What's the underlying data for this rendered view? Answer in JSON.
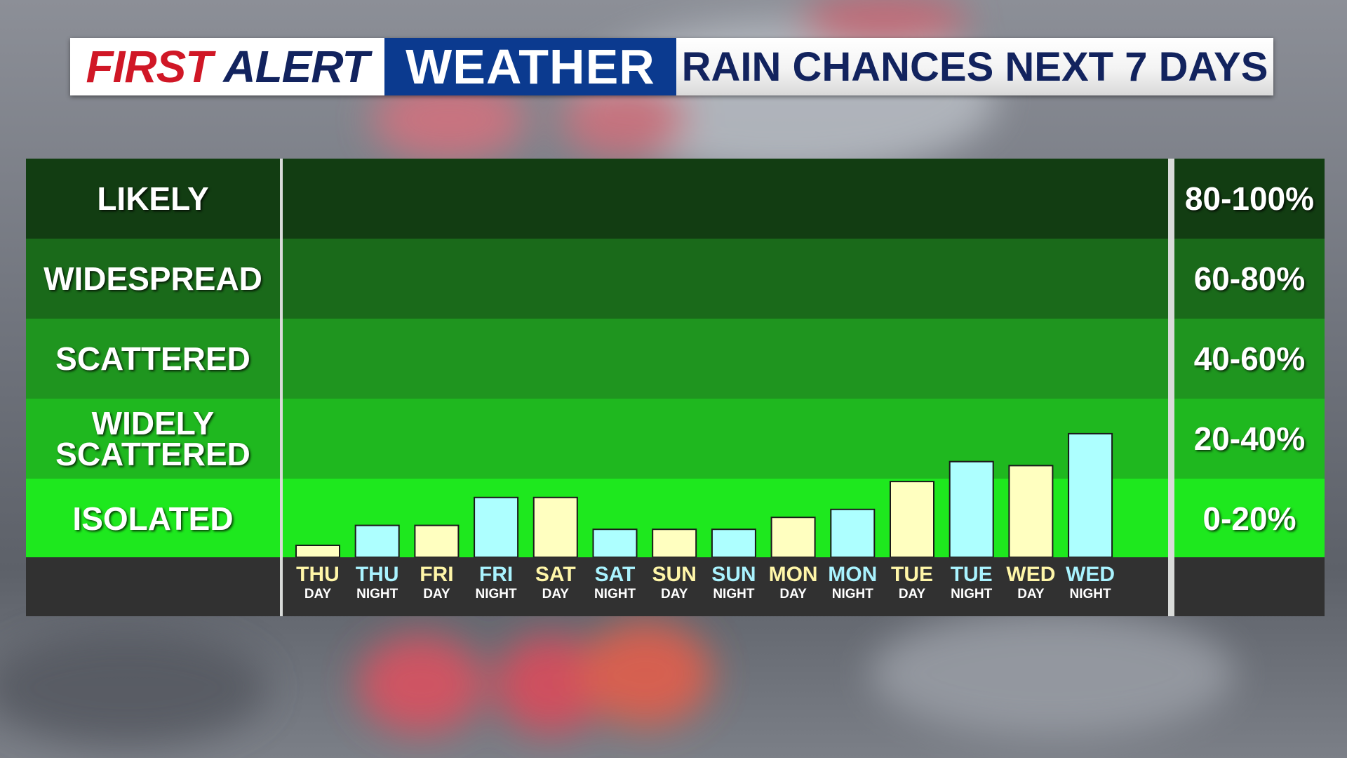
{
  "header": {
    "brand_first": "FIRST",
    "brand_alert": "ALERT",
    "brand_weather": "WEATHER",
    "title": "RAIN CHANCES NEXT 7 DAYS"
  },
  "colors": {
    "day_bar": "#ffffc0",
    "night_bar": "#adffff",
    "day_label": "#fff6a8",
    "night_label": "#a9f3ff",
    "band_likely": "#123d12",
    "band_widespread": "#1a6a1a",
    "band_scattered": "#1f951f",
    "band_widely_scattered": "#1fb81f",
    "band_isolated": "#1ee81e",
    "brand_red": "#d01726",
    "brand_navy": "#12235e",
    "brand_blue": "#0b3a8f"
  },
  "chart_data": {
    "type": "bar",
    "ylim": [
      0,
      100
    ],
    "categories": [
      {
        "day": "THU",
        "period": "DAY"
      },
      {
        "day": "THU",
        "period": "NIGHT"
      },
      {
        "day": "FRI",
        "period": "DAY"
      },
      {
        "day": "FRI",
        "period": "NIGHT"
      },
      {
        "day": "SAT",
        "period": "DAY"
      },
      {
        "day": "SAT",
        "period": "NIGHT"
      },
      {
        "day": "SUN",
        "period": "DAY"
      },
      {
        "day": "SUN",
        "period": "NIGHT"
      },
      {
        "day": "MON",
        "period": "DAY"
      },
      {
        "day": "MON",
        "period": "NIGHT"
      },
      {
        "day": "TUE",
        "period": "DAY"
      },
      {
        "day": "TUE",
        "period": "NIGHT"
      },
      {
        "day": "WED",
        "period": "DAY"
      },
      {
        "day": "WED",
        "period": "NIGHT"
      }
    ],
    "values": [
      3,
      8,
      8,
      15,
      15,
      7,
      7,
      7,
      10,
      12,
      19,
      24,
      23,
      31
    ],
    "bands": [
      {
        "label": "LIKELY",
        "range": "80-100%"
      },
      {
        "label": "WIDESPREAD",
        "range": "60-80%"
      },
      {
        "label": "SCATTERED",
        "range": "40-60%"
      },
      {
        "label": "WIDELY\nSCATTERED",
        "range": "20-40%"
      },
      {
        "label": "ISOLATED",
        "range": "0-20%"
      }
    ]
  }
}
